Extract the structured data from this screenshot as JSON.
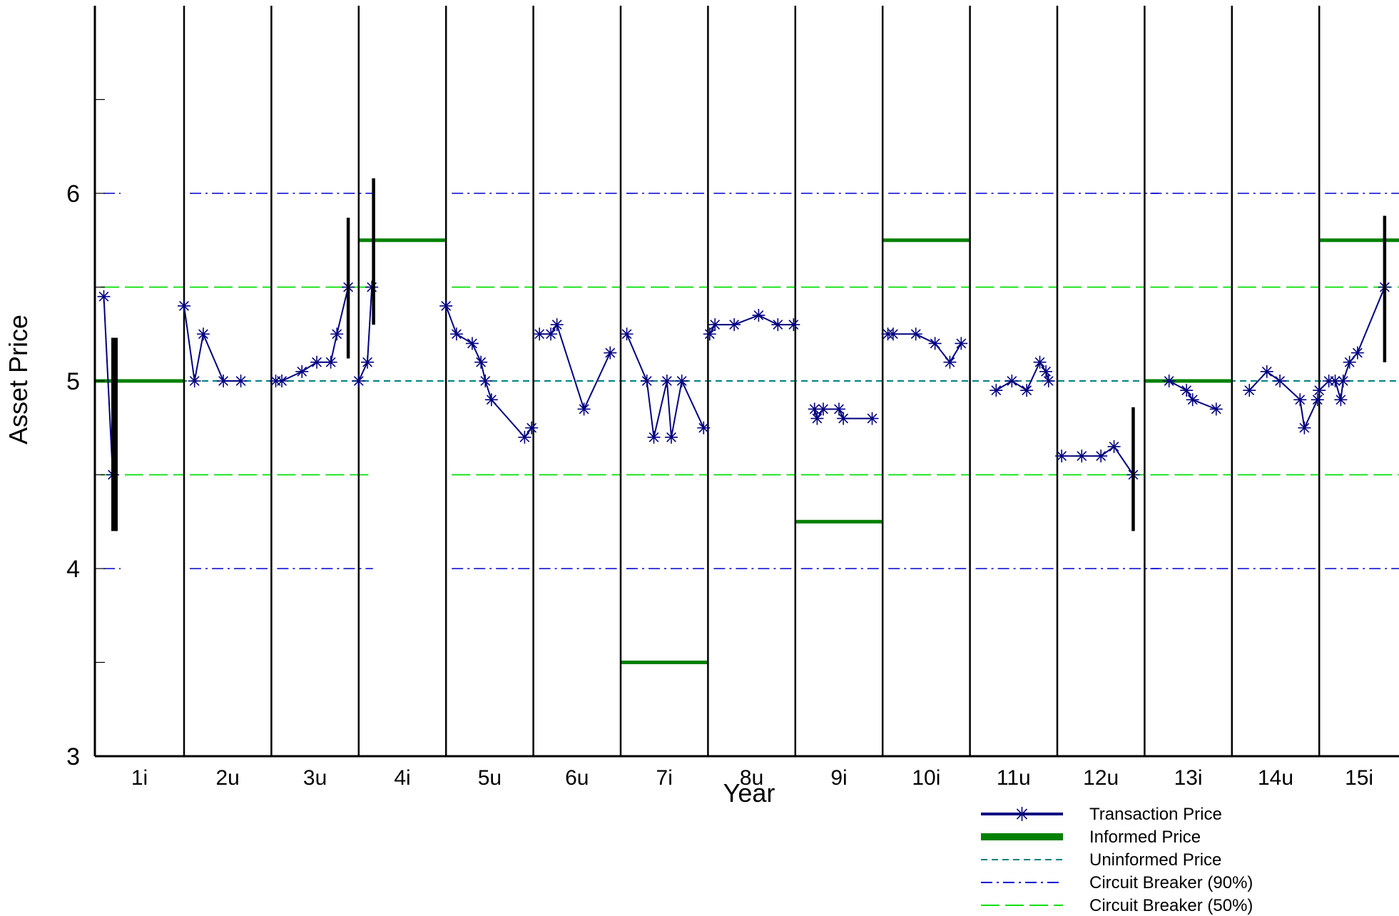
{
  "chart_data": {
    "type": "line",
    "title": "",
    "xlabel": "Year",
    "ylabel": "Asset Price",
    "ylim": [
      3,
      7
    ],
    "yticks": [
      "3",
      "4",
      "5",
      "6"
    ],
    "periods": [
      "1i",
      "2u",
      "3u",
      "4i",
      "5u",
      "6u",
      "7i",
      "8u",
      "9i",
      "10i",
      "11u",
      "12u",
      "13i",
      "14u",
      "15i"
    ],
    "legend_placement": "bottom-right",
    "colors": {
      "transaction": "#000080",
      "informed": "#008000",
      "uninformed": "#008080",
      "cb90": "#0000cd",
      "cb50": "#00e000",
      "halt": "#000000"
    },
    "series": [
      {
        "name": "Transaction Price",
        "points": [
          [
            [
              0.1,
              5.45
            ],
            [
              0.2,
              4.5
            ]
          ],
          [
            [
              0.0,
              5.4
            ],
            [
              0.12,
              5.0
            ],
            [
              0.22,
              5.25
            ],
            [
              0.45,
              5.0
            ],
            [
              0.65,
              5.0
            ]
          ],
          [
            [
              0.05,
              5.0
            ],
            [
              0.12,
              5.0
            ],
            [
              0.35,
              5.05
            ],
            [
              0.52,
              5.1
            ],
            [
              0.68,
              5.1
            ],
            [
              0.75,
              5.25
            ],
            [
              0.88,
              5.5
            ]
          ],
          [
            [
              0.0,
              5.0
            ],
            [
              0.1,
              5.1
            ],
            [
              0.15,
              5.5
            ]
          ],
          [
            [
              0.0,
              5.4
            ],
            [
              0.12,
              5.25
            ],
            [
              0.3,
              5.2
            ],
            [
              0.4,
              5.1
            ],
            [
              0.45,
              5.0
            ],
            [
              0.52,
              4.9
            ],
            [
              0.9,
              4.7
            ],
            [
              0.98,
              4.75
            ]
          ],
          [
            [
              0.07,
              5.25
            ],
            [
              0.2,
              5.25
            ],
            [
              0.27,
              5.3
            ],
            [
              0.58,
              4.85
            ],
            [
              0.88,
              5.15
            ]
          ],
          [
            [
              0.07,
              5.25
            ],
            [
              0.3,
              5.0
            ],
            [
              0.38,
              4.7
            ],
            [
              0.53,
              5.0
            ],
            [
              0.58,
              4.7
            ],
            [
              0.7,
              5.0
            ],
            [
              0.95,
              4.75
            ]
          ],
          [
            [
              0.02,
              5.25
            ],
            [
              0.08,
              5.3
            ],
            [
              0.3,
              5.3
            ],
            [
              0.58,
              5.35
            ],
            [
              0.8,
              5.3
            ],
            [
              0.98,
              5.3
            ]
          ],
          [
            [
              0.22,
              4.85
            ],
            [
              0.25,
              4.8
            ],
            [
              0.32,
              4.85
            ],
            [
              0.5,
              4.85
            ],
            [
              0.55,
              4.8
            ],
            [
              0.88,
              4.8
            ]
          ],
          [
            [
              0.06,
              5.25
            ],
            [
              0.12,
              5.25
            ],
            [
              0.38,
              5.25
            ],
            [
              0.6,
              5.2
            ],
            [
              0.77,
              5.1
            ],
            [
              0.9,
              5.2
            ]
          ],
          [
            [
              0.3,
              4.95
            ],
            [
              0.48,
              5.0
            ],
            [
              0.65,
              4.95
            ],
            [
              0.8,
              5.1
            ],
            [
              0.87,
              5.05
            ],
            [
              0.9,
              5.0
            ]
          ],
          [
            [
              0.05,
              4.6
            ],
            [
              0.28,
              4.6
            ],
            [
              0.5,
              4.6
            ],
            [
              0.65,
              4.65
            ],
            [
              0.87,
              4.5
            ]
          ],
          [
            [
              0.28,
              5.0
            ],
            [
              0.48,
              4.95
            ],
            [
              0.55,
              4.9
            ],
            [
              0.82,
              4.85
            ]
          ],
          [
            [
              0.2,
              4.95
            ],
            [
              0.4,
              5.05
            ],
            [
              0.55,
              5.0
            ],
            [
              0.78,
              4.9
            ],
            [
              0.83,
              4.75
            ],
            [
              0.98,
              4.9
            ]
          ],
          [
            [
              0.0,
              4.95
            ],
            [
              0.12,
              5.0
            ],
            [
              0.2,
              5.0
            ],
            [
              0.27,
              4.9
            ],
            [
              0.3,
              5.0
            ],
            [
              0.38,
              5.1
            ],
            [
              0.48,
              5.15
            ],
            [
              0.82,
              5.5
            ]
          ]
        ]
      },
      {
        "name": "Informed Price",
        "values": [
          5.0,
          null,
          null,
          5.75,
          null,
          null,
          3.5,
          null,
          4.25,
          5.75,
          null,
          null,
          5.0,
          null,
          5.75
        ]
      },
      {
        "name": "Uninformed Price",
        "value": 5.0
      },
      {
        "name": "Circuit Breaker (90%)",
        "lower": 4.0,
        "upper": 6.0,
        "active_periods": [
          1,
          2,
          3,
          5,
          6,
          7,
          8,
          9,
          10,
          11,
          12,
          13,
          14,
          15
        ],
        "partial_periods": [
          1,
          3,
          12
        ]
      },
      {
        "name": "Circuit Breaker (50%)",
        "lower": 4.5,
        "upper": 5.5,
        "active_periods": [
          1,
          2,
          3,
          5,
          6,
          7,
          8,
          9,
          10,
          11,
          12,
          13,
          14,
          15
        ],
        "partial_periods": [
          3
        ]
      }
    ],
    "halts": [
      {
        "period": 1,
        "x": 0.22,
        "low": 4.2,
        "high": 5.23,
        "heavy": true
      },
      {
        "period": 3,
        "x": 0.88,
        "low": 5.12,
        "high": 5.87,
        "heavy": false
      },
      {
        "period": 4,
        "x": 0.17,
        "low": 5.3,
        "high": 6.08,
        "heavy": false
      },
      {
        "period": 12,
        "x": 0.87,
        "low": 4.2,
        "high": 4.86,
        "heavy": false
      },
      {
        "period": 15,
        "x": 0.82,
        "low": 5.1,
        "high": 5.88,
        "heavy": false
      }
    ]
  },
  "legend": [
    {
      "key": "transaction",
      "label": "Transaction Price"
    },
    {
      "key": "informed",
      "label": "Informed Price"
    },
    {
      "key": "uninformed",
      "label": "Uninformed Price"
    },
    {
      "key": "cb90",
      "label": "Circuit Breaker (90%)"
    },
    {
      "key": "cb50",
      "label": "Circuit Breaker (50%)"
    }
  ]
}
